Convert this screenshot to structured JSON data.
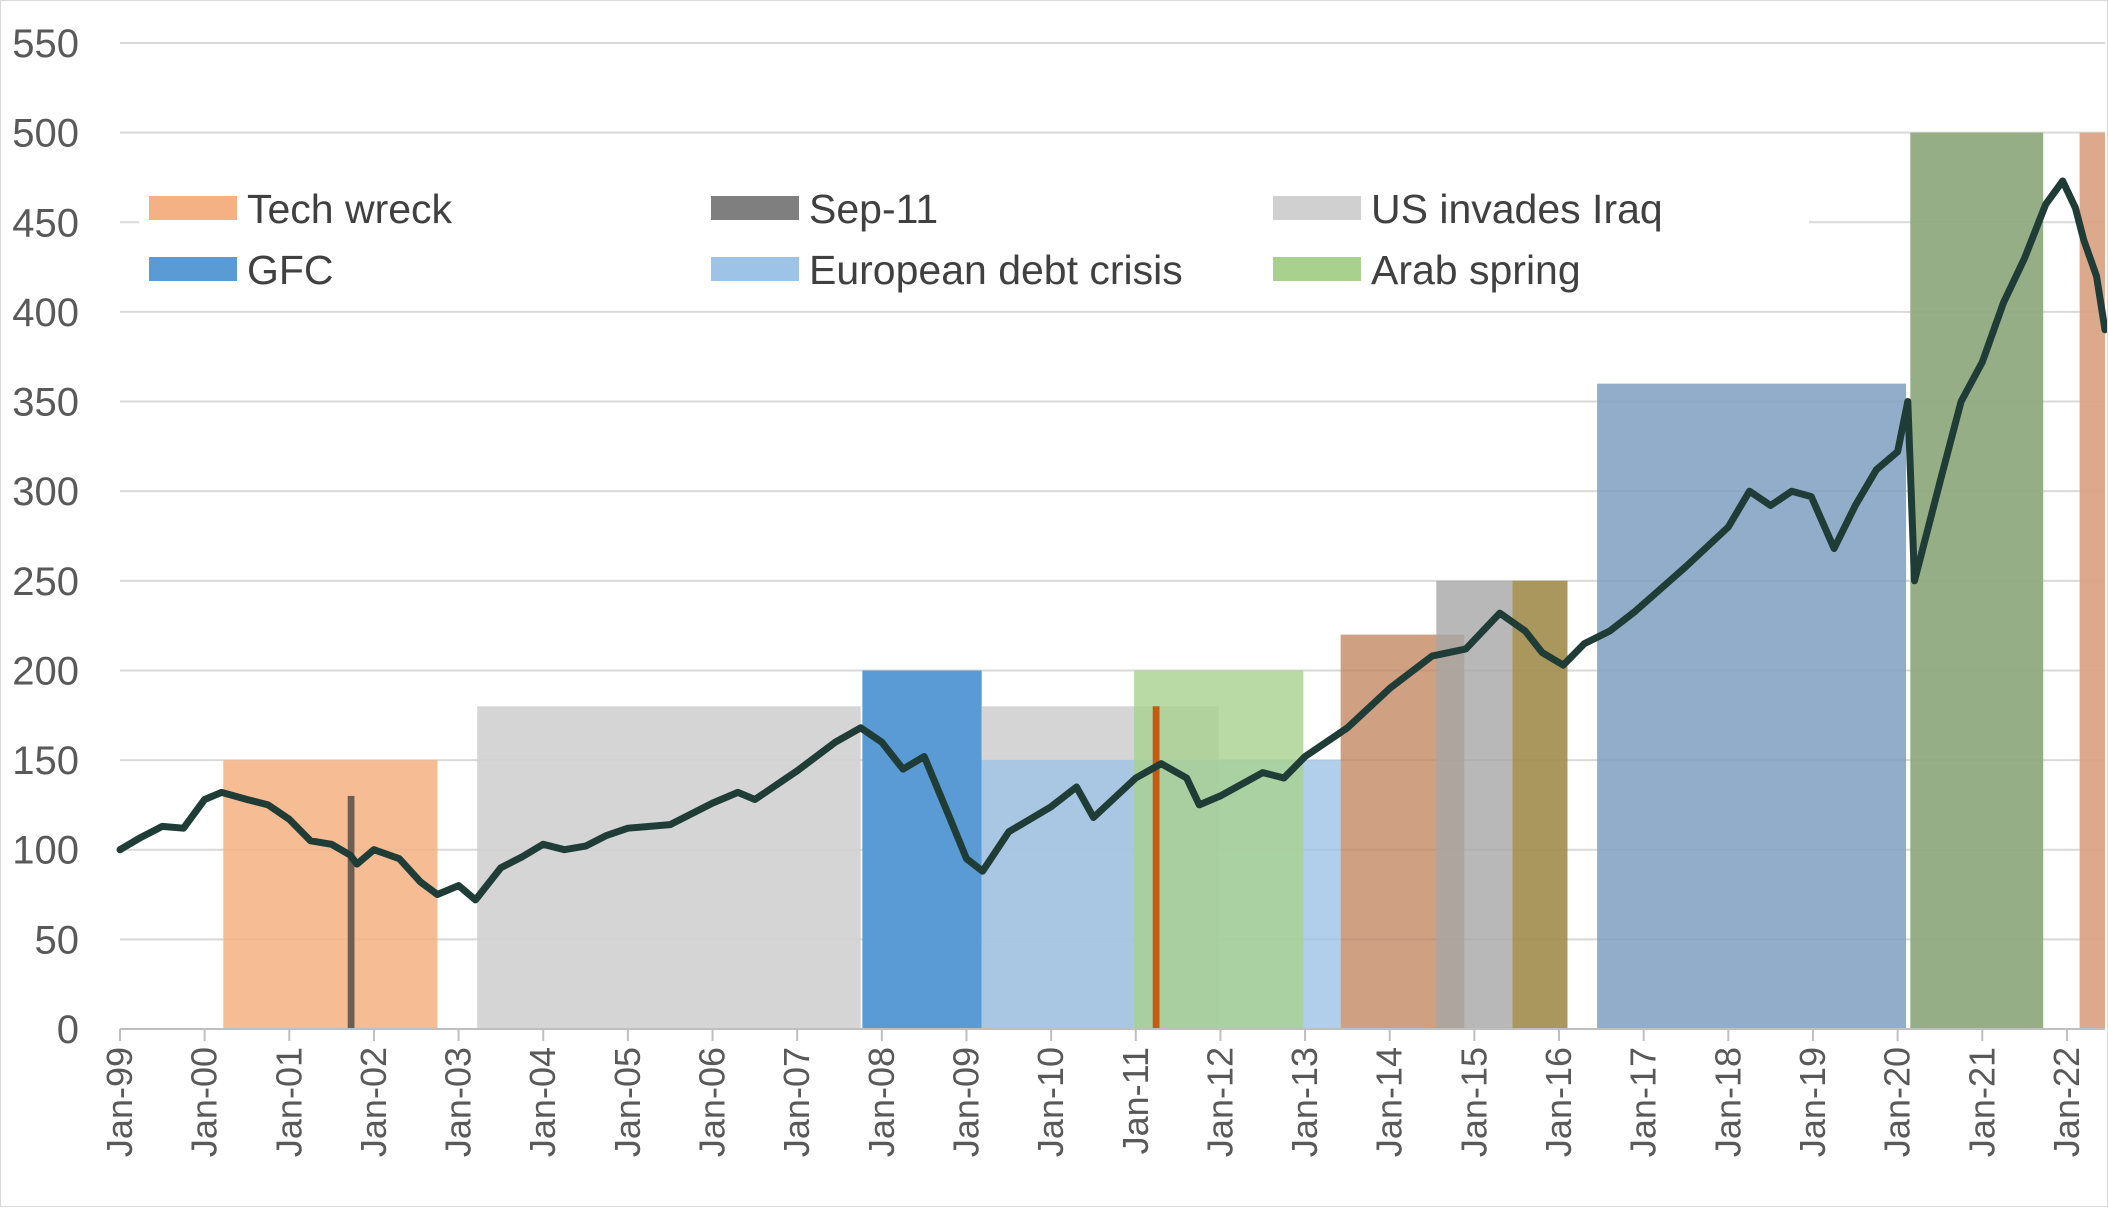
{
  "chart_data": {
    "type": "line",
    "title": "",
    "xlabel": "",
    "ylabel": "",
    "ylim": [
      0,
      550
    ],
    "xlim": [
      "Jan-99",
      "Jun-22"
    ],
    "y_ticks": [
      "0",
      "50",
      "100",
      "150",
      "200",
      "250",
      "300",
      "350",
      "400",
      "450",
      "500",
      "550"
    ],
    "x_ticks": [
      "Jan-99",
      "Jan-00",
      "Jan-01",
      "Jan-02",
      "Jan-03",
      "Jan-04",
      "Jan-05",
      "Jan-06",
      "Jan-07",
      "Jan-08",
      "Jan-09",
      "Jan-10",
      "Jan-11",
      "Jan-12",
      "Jan-13",
      "Jan-14",
      "Jan-15",
      "Jan-16",
      "Jan-17",
      "Jan-18",
      "Jan-19",
      "Jan-20",
      "Jan-21",
      "Jan-22"
    ],
    "grid": "horizontal",
    "legend_position": "top-left, 3 columns",
    "legend": [
      {
        "label": "Tech wreck",
        "color": "#f4b183"
      },
      {
        "label": "Sep-11",
        "color": "#7f7f7f"
      },
      {
        "label": "US invades Iraq",
        "color": "#d0d0d0"
      },
      {
        "label": "GFC",
        "color": "#5b9bd5"
      },
      {
        "label": "European debt crisis",
        "color": "#9dc3e6"
      },
      {
        "label": "Arab spring",
        "color": "#a9d18e"
      }
    ],
    "events": [
      {
        "start": 2000.22,
        "end": 2002.75,
        "height": 150,
        "color": "#f4b183",
        "opacity": 0.85
      },
      {
        "start": 2001.69,
        "end": 2001.77,
        "height": 130,
        "color": "#6d5e51",
        "opacity": 1
      },
      {
        "start": 2003.22,
        "end": 2007.75,
        "height": 180,
        "color": "#d0d0d0",
        "opacity": 0.9
      },
      {
        "start": 2007.77,
        "end": 2009.18,
        "height": 200,
        "color": "#5b9bd5",
        "opacity": 1
      },
      {
        "start": 2009.18,
        "end": 2011.98,
        "height": 180,
        "color": "#d0d0d0",
        "opacity": 0.9
      },
      {
        "start": 2009.18,
        "end": 2013.42,
        "height": 150,
        "color": "#9dc3e6",
        "opacity": 0.8
      },
      {
        "start": 2010.98,
        "end": 2012.98,
        "height": 200,
        "color": "#a9d18e",
        "opacity": 0.8
      },
      {
        "start": 2011.2,
        "end": 2011.28,
        "height": 180,
        "color": "#c55a11",
        "opacity": 1
      },
      {
        "start": 2013.42,
        "end": 2014.88,
        "height": 220,
        "color": "#c0805a",
        "opacity": 0.75
      },
      {
        "start": 2014.55,
        "end": 2015.45,
        "height": 250,
        "color": "#a6a6a6",
        "opacity": 0.8
      },
      {
        "start": 2015.45,
        "end": 2016.1,
        "height": 250,
        "color": "#a08c4c",
        "opacity": 0.9
      },
      {
        "start": 2016.45,
        "end": 2020.1,
        "height": 360,
        "color": "#7f9fc0",
        "opacity": 0.85
      },
      {
        "start": 2020.15,
        "end": 2021.72,
        "height": 500,
        "color": "#8faa80",
        "opacity": 0.95
      },
      {
        "start": 2022.15,
        "end": 2022.45,
        "height": 500,
        "color": "#d9a080",
        "opacity": 0.9
      }
    ],
    "series": [
      {
        "color": "#1f3d36",
        "x": [
          1999.0,
          1999.25,
          1999.5,
          1999.75,
          2000.0,
          2000.2,
          2000.5,
          2000.75,
          2001.0,
          2001.25,
          2001.5,
          2001.72,
          2001.8,
          2002.0,
          2002.3,
          2002.55,
          2002.75,
          2003.0,
          2003.2,
          2003.5,
          2003.75,
          2004.0,
          2004.25,
          2004.5,
          2004.75,
          2005.0,
          2005.5,
          2006.0,
          2006.3,
          2006.5,
          2007.0,
          2007.45,
          2007.75,
          2008.0,
          2008.25,
          2008.5,
          2008.8,
          2009.0,
          2009.19,
          2009.5,
          2010.0,
          2010.3,
          2010.5,
          2011.0,
          2011.3,
          2011.6,
          2011.75,
          2012.0,
          2012.5,
          2012.75,
          2013.0,
          2013.5,
          2014.0,
          2014.5,
          2014.9,
          2015.3,
          2015.6,
          2015.8,
          2016.05,
          2016.3,
          2016.6,
          2016.9,
          2017.5,
          2018.0,
          2018.25,
          2018.5,
          2018.75,
          2018.98,
          2019.25,
          2019.5,
          2019.75,
          2020.0,
          2020.12,
          2020.2,
          2020.5,
          2020.75,
          2021.0,
          2021.25,
          2021.5,
          2021.75,
          2021.95,
          2022.1,
          2022.2,
          2022.35,
          2022.45
        ],
        "y": [
          100,
          107,
          113,
          112,
          128,
          132,
          128,
          125,
          117,
          105,
          103,
          97,
          92,
          100,
          95,
          82,
          75,
          80,
          72,
          90,
          96,
          103,
          100,
          102,
          108,
          112,
          114,
          126,
          132,
          128,
          144,
          160,
          168,
          160,
          145,
          152,
          118,
          95,
          88,
          110,
          124,
          135,
          118,
          140,
          148,
          140,
          125,
          130,
          143,
          140,
          152,
          168,
          190,
          208,
          212,
          232,
          222,
          210,
          203,
          215,
          222,
          233,
          258,
          280,
          300,
          292,
          300,
          297,
          268,
          292,
          312,
          322,
          350,
          250,
          305,
          350,
          372,
          405,
          430,
          460,
          473,
          458,
          440,
          420,
          390
        ]
      }
    ]
  }
}
